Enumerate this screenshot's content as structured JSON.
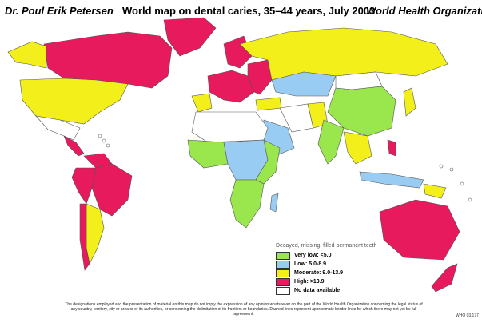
{
  "header": {
    "author": "Dr. Poul Erik Petersen",
    "title": "World map on dental caries, 35–44 years, July 2003",
    "organization": "World Health Organization"
  },
  "colors": {
    "very_low": "#99e64d",
    "low": "#99ccf2",
    "moderate": "#f2ef1a",
    "high": "#e61a5c",
    "no_data": "#ffffff",
    "border": "#555555"
  },
  "legend": {
    "title": "Decayed, missing, filled permanent teeth",
    "items": [
      {
        "label": "Very low: <5.0",
        "color": "#99e64d"
      },
      {
        "label": "Low: 5.0-8.9",
        "color": "#99ccf2"
      },
      {
        "label": "Moderate: 9.0-13.9",
        "color": "#f2ef1a"
      },
      {
        "label": "High: >13.9",
        "color": "#e61a5c"
      },
      {
        "label": "No data available",
        "color": "#ffffff"
      }
    ]
  },
  "footnote": "The designations employed and the presentation of material on this map do not imply the expression of any opinion whatsoever on the part of the World Health Organization concerning the legal status of any country, territory, city or area or of its authorities, or concerning the delimitation of its frontiers or boundaries. Dashed lines represent approximate border lines for which there may not yet be full agreement.",
  "map_code": "WHO 03.177"
}
